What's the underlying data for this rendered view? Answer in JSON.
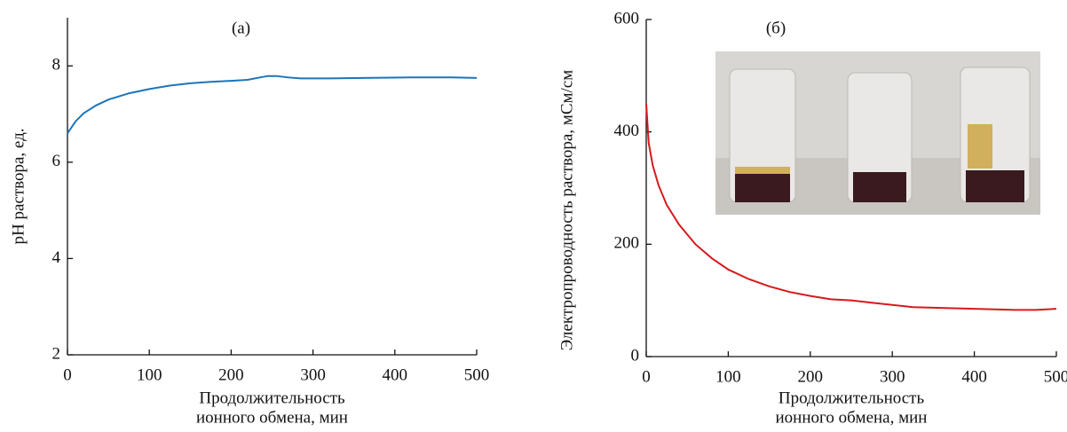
{
  "chart_data": [
    {
      "type": "line",
      "title": "(а)",
      "ylabel": "pH раствора, ед.",
      "xlabel": [
        "Продолжительность",
        "ионного обмена, мин"
      ],
      "x": [
        0,
        10,
        20,
        35,
        50,
        75,
        100,
        125,
        150,
        175,
        200,
        220,
        235,
        245,
        255,
        270,
        285,
        320,
        360,
        420,
        470,
        500
      ],
      "series": [
        {
          "name": null,
          "color": "#1b75bb",
          "values": [
            6.6,
            6.85,
            7.02,
            7.18,
            7.3,
            7.43,
            7.52,
            7.59,
            7.64,
            7.67,
            7.69,
            7.71,
            7.76,
            7.79,
            7.79,
            7.76,
            7.74,
            7.74,
            7.75,
            7.76,
            7.76,
            7.75
          ]
        }
      ],
      "xlim": [
        0,
        500
      ],
      "xticks": [
        0,
        100,
        200,
        300,
        400,
        500
      ],
      "ylim": [
        2,
        9
      ],
      "yticks": [
        2,
        4,
        6,
        8
      ]
    },
    {
      "type": "line",
      "title": "(б)",
      "ylabel": "Электропроводность раствора, мСм/см",
      "xlabel": [
        "Продолжительность",
        "ионного обмена, мин"
      ],
      "x": [
        0,
        3,
        8,
        15,
        25,
        40,
        60,
        80,
        100,
        125,
        150,
        175,
        200,
        225,
        250,
        275,
        300,
        325,
        350,
        400,
        450,
        475,
        500
      ],
      "series": [
        {
          "name": null,
          "color": "#d7191c",
          "values": [
            450,
            380,
            340,
            305,
            270,
            235,
            200,
            175,
            155,
            138,
            125,
            115,
            108,
            102,
            100,
            96,
            92,
            88,
            87,
            85,
            83,
            83,
            85
          ]
        }
      ],
      "xlim": [
        0,
        500
      ],
      "xticks": [
        0,
        100,
        200,
        300,
        400,
        500
      ],
      "ylim": [
        0,
        600
      ],
      "yticks": [
        0,
        200,
        400,
        600
      ]
    }
  ]
}
